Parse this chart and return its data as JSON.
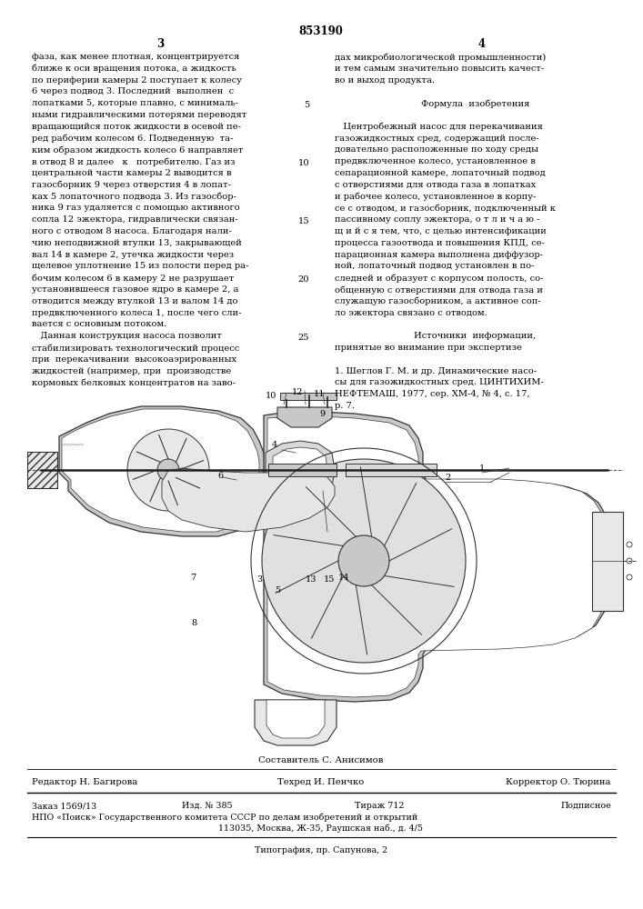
{
  "patent_number": "853190",
  "page_numbers": [
    "3",
    "4"
  ],
  "bg_color": "#ffffff",
  "text_color": "#000000",
  "col1_lines": [
    "фаза, как менее плотная, концентрируется",
    "ближе к оси вращения потока, а жидкость",
    "по периферии камеры 2 поступает к колесу",
    "6 через подвод 3. Последний  выполнен  с",
    "лопатками 5, которые плавно, с минималь-",
    "ными гидравлическими потерями переводят",
    "вращающийся поток жидкости в осевой пе-",
    "ред рабочим колесом 6. Подведенную  та-",
    "ким образом жидкость колесо 6 направляет",
    "в отвод 8 и далее   к   потребителю. Газ из",
    "центральной части камеры 2 выводится в",
    "газосборник 9 через отверстия 4 в лопат-",
    "ках 5 лопаточного подвода 3. Из газосбор-",
    "ника 9 газ удаляется с помощью активного",
    "сопла 12 эжектора, гидравлически связан-",
    "ного с отводом 8 насоса. Благодаря нали-",
    "чию неподвижной втулки 13, закрывающей",
    "вал 14 в камере 2, утечка жидкости через",
    "щелевое уплотнение 15 из полости перед ра-",
    "бочим колесом 6 в камеру 2 не разрушает",
    "установившееся газовое ядро в камере 2, а",
    "отводится между втулкой 13 и валом 14 до",
    "предвключенного колеса 1, после чего сли-",
    "вается с основным потоком.",
    "   Данная конструкция насоса позволит",
    "стабилизировать технологический процесс",
    "при  перекачивании  высокоаэрированных",
    "жидкостей (например, при  производстве",
    "кормовых белковых концентратов на заво-"
  ],
  "col1_line_numbers": [
    5,
    10,
    15,
    20,
    25
  ],
  "col1_line_number_rows": [
    4,
    9,
    14,
    19,
    24
  ],
  "col2_lines": [
    "дах микробиологической промышленности)",
    "и тем самым значительно повысить качест-",
    "во и выход продукта.",
    "",
    "       Формула  изобретения",
    "",
    "   Центробежный насос для перекачивания",
    "газожидкостных сред, содержащий после-",
    "довательно расположенные по ходу среды",
    "предвключенное колесо, установленное в",
    "сепарационной камере, лопаточный подвод",
    "с отверстиями для отвода газа в лопатках",
    "и рабочее колесо, установленное в корпу-",
    "се с отводом, и газосборник, подключенный к",
    "пассивному соплу эжектора, о т л и ч а ю -",
    "щ и й с я тем, что, с целью интенсификации",
    "процесса газоотвода и повышения КПД, се-",
    "парационная камера выполнена диффузор-",
    "ной, лопаточный подвод установлен в по-",
    "следней и образует с корпусом полость, со-",
    "общенную с отверстиями для отвода газа и",
    "служащую газосборником, а активное соп-",
    "ло эжектора связано с отводом.",
    "",
    "       Источники  информации,",
    "принятые во внимание при экспертизе",
    "",
    "1. Шеглов Г. М. и др. Динамические насо-",
    "сы для газожидкостных сред. ЦИНТИХИМ-",
    "НЕФТЕМАШ, 1977, сер. ХМ-4, № 4, с. 17,",
    "р. 7."
  ],
  "footer_composer": "Составитель С. Анисимов",
  "footer_editor": "Редактор Н. Багирова",
  "footer_tech": "Техред И. Пенчко",
  "footer_corrector": "Корректор О. Тюрина",
  "footer_order": "Заказ 1569/13",
  "footer_izd": "Изд. № 385",
  "footer_tirazh": "Тираж 712",
  "footer_podp": "Подписное",
  "footer_npo": "НПО «Поиск» Государственного комитета СССР по делам изобретений и открытий",
  "footer_addr": "113035, Москва, Ж-35, Раушская наб., д. 4/5",
  "footer_tip": "Типография, пр. Сапунова, 2",
  "diagram_labels": [
    [
      300,
      562,
      "10"
    ],
    [
      328,
      562,
      "12"
    ],
    [
      352,
      560,
      "11"
    ],
    [
      355,
      590,
      "9"
    ],
    [
      490,
      530,
      "2"
    ],
    [
      530,
      518,
      "1"
    ],
    [
      240,
      528,
      "6"
    ],
    [
      302,
      496,
      "4"
    ],
    [
      220,
      622,
      "7"
    ],
    [
      240,
      660,
      "7"
    ],
    [
      220,
      688,
      "8"
    ],
    [
      290,
      636,
      "3"
    ],
    [
      310,
      648,
      "5"
    ],
    [
      345,
      638,
      "13"
    ],
    [
      367,
      638,
      "15"
    ],
    [
      385,
      635,
      "14"
    ]
  ]
}
